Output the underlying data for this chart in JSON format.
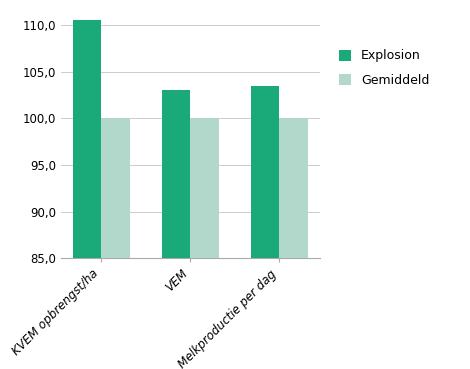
{
  "categories": [
    "KVEM opbrengst/ha",
    "VEM",
    "Melkproductie per dag"
  ],
  "explosion_values": [
    110.5,
    103.0,
    103.5
  ],
  "gemiddeld_values": [
    100.0,
    100.0,
    100.0
  ],
  "explosion_color": "#1aaa7a",
  "gemiddeld_color": "#b2d8cc",
  "ylim": [
    85.0,
    111.5
  ],
  "yticks": [
    85.0,
    90.0,
    95.0,
    100.0,
    105.0,
    110.0
  ],
  "legend_labels": [
    "Explosion",
    "Gemiddeld"
  ],
  "bar_width": 0.32,
  "background_color": "#ffffff",
  "tick_label_fontsize": 8.5,
  "legend_fontsize": 9,
  "grid_color": "#cccccc",
  "spine_color": "#aaaaaa"
}
